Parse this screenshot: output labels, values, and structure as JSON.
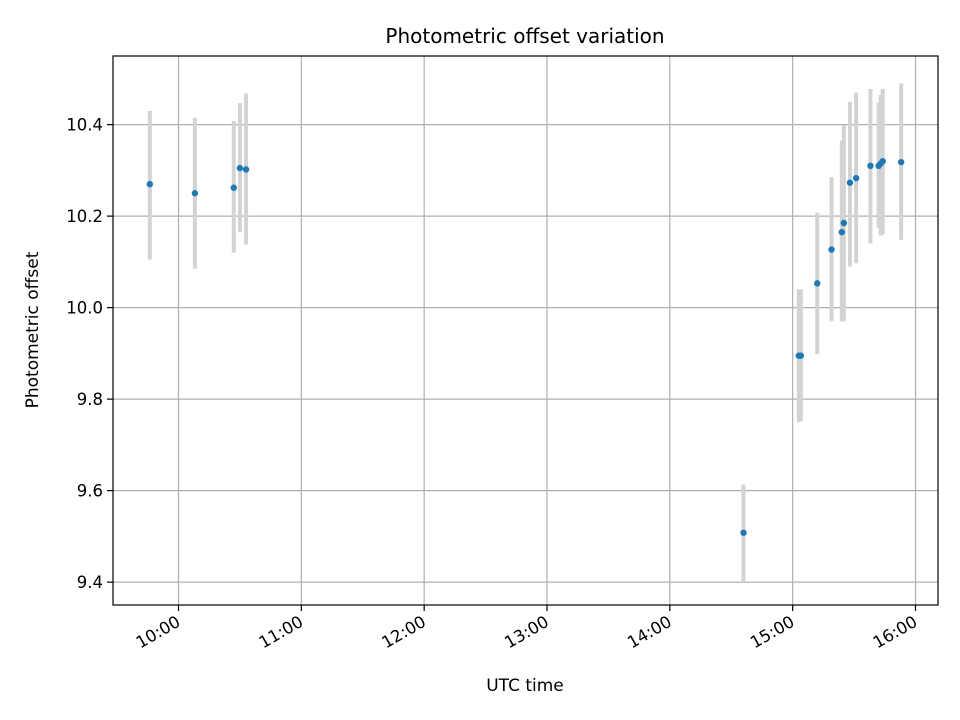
{
  "chart_data": {
    "type": "scatter",
    "title": "Photometric offset variation",
    "xlabel": "UTC time",
    "ylabel": "Photometric offset",
    "x_axis_type": "time",
    "xlim": [
      "09:28",
      "16:11"
    ],
    "ylim": [
      9.35,
      10.55
    ],
    "x_ticks": [
      "10:00",
      "11:00",
      "12:00",
      "13:00",
      "14:00",
      "15:00",
      "16:00"
    ],
    "y_ticks": [
      9.4,
      9.6,
      9.8,
      10.0,
      10.2,
      10.4
    ],
    "y_tick_labels": [
      "9.4",
      "9.6",
      "9.8",
      "10.0",
      "10.2",
      "10.4"
    ],
    "grid": true,
    "legend": "none",
    "colors": {
      "marker": "#1f77b4",
      "errorbar": "#d3d3d3",
      "grid": "#b0b0b0"
    },
    "points": [
      {
        "x": "09:46",
        "y": 10.27,
        "ymin": 10.105,
        "ymax": 10.43
      },
      {
        "x": "10:08",
        "y": 10.25,
        "ymin": 10.085,
        "ymax": 10.415
      },
      {
        "x": "10:27",
        "y": 10.262,
        "ymin": 10.12,
        "ymax": 10.408
      },
      {
        "x": "10:30",
        "y": 10.305,
        "ymin": 10.165,
        "ymax": 10.447
      },
      {
        "x": "10:33",
        "y": 10.302,
        "ymin": 10.138,
        "ymax": 10.468
      },
      {
        "x": "14:36",
        "y": 9.508,
        "ymin": 9.4,
        "ymax": 9.613
      },
      {
        "x": "15:03",
        "y": 9.895,
        "ymin": 9.75,
        "ymax": 10.04
      },
      {
        "x": "15:04",
        "y": 9.895,
        "ymin": 9.752,
        "ymax": 10.04
      },
      {
        "x": "15:12",
        "y": 10.053,
        "ymin": 9.898,
        "ymax": 10.207
      },
      {
        "x": "15:19",
        "y": 10.127,
        "ymin": 9.97,
        "ymax": 10.285
      },
      {
        "x": "15:24",
        "y": 10.165,
        "ymin": 9.97,
        "ymax": 10.365
      },
      {
        "x": "15:25",
        "y": 10.185,
        "ymin": 9.97,
        "ymax": 10.398
      },
      {
        "x": "15:28",
        "y": 10.273,
        "ymin": 10.09,
        "ymax": 10.45
      },
      {
        "x": "15:31",
        "y": 10.283,
        "ymin": 10.097,
        "ymax": 10.47
      },
      {
        "x": "15:38",
        "y": 10.31,
        "ymin": 10.14,
        "ymax": 10.478
      },
      {
        "x": "15:42",
        "y": 10.31,
        "ymin": 10.175,
        "ymax": 10.448
      },
      {
        "x": "15:43",
        "y": 10.315,
        "ymin": 10.158,
        "ymax": 10.465
      },
      {
        "x": "15:44",
        "y": 10.32,
        "ymin": 10.16,
        "ymax": 10.478
      },
      {
        "x": "15:53",
        "y": 10.318,
        "ymin": 10.148,
        "ymax": 10.49
      }
    ]
  }
}
